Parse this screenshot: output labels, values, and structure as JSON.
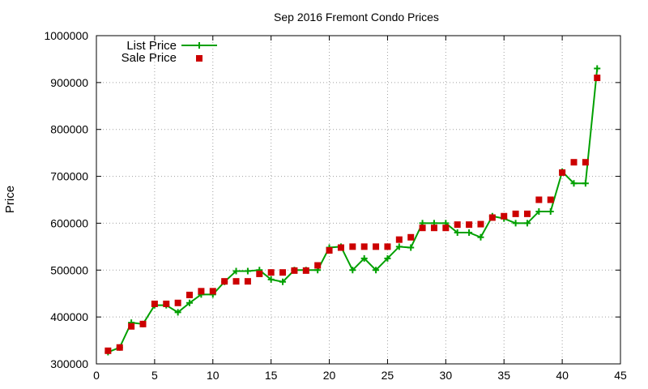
{
  "chart_data": {
    "type": "line",
    "title": "Sep 2016 Fremont Condo Prices",
    "xlabel": "",
    "ylabel": "Price",
    "xlim": [
      0,
      45
    ],
    "ylim": [
      300000,
      1000000
    ],
    "xticks": [
      0,
      5,
      10,
      15,
      20,
      25,
      30,
      35,
      40,
      45
    ],
    "yticks": [
      300000,
      400000,
      500000,
      600000,
      700000,
      800000,
      900000,
      1000000
    ],
    "x_tick_labels": [
      "0",
      "5",
      "10",
      "15",
      "20",
      "25",
      "30",
      "35",
      "40",
      "45"
    ],
    "y_tick_labels": [
      "300000",
      "400000",
      "500000",
      "600000",
      "700000",
      "800000",
      "900000",
      "1000000"
    ],
    "grid": true,
    "legend_position": "top-left",
    "series": [
      {
        "name": "List Price",
        "style": "line+plus-marker",
        "color": "#00a000",
        "points": [
          [
            1,
            325000
          ],
          [
            2,
            335000
          ],
          [
            3,
            388000
          ],
          [
            4,
            385000
          ],
          [
            5,
            425000
          ],
          [
            6,
            425000
          ],
          [
            7,
            410000
          ],
          [
            8,
            430000
          ],
          [
            9,
            448000
          ],
          [
            10,
            448000
          ],
          [
            11,
            475000
          ],
          [
            12,
            498000
          ],
          [
            13,
            498000
          ],
          [
            14,
            500000
          ],
          [
            15,
            480000
          ],
          [
            16,
            475000
          ],
          [
            17,
            500000
          ],
          [
            18,
            500000
          ],
          [
            19,
            500000
          ],
          [
            20,
            548000
          ],
          [
            21,
            550000
          ],
          [
            22,
            500000
          ],
          [
            23,
            525000
          ],
          [
            24,
            500000
          ],
          [
            25,
            525000
          ],
          [
            26,
            550000
          ],
          [
            27,
            548000
          ],
          [
            28,
            600000
          ],
          [
            29,
            600000
          ],
          [
            30,
            600000
          ],
          [
            31,
            580000
          ],
          [
            32,
            580000
          ],
          [
            33,
            570000
          ],
          [
            34,
            615000
          ],
          [
            35,
            610000
          ],
          [
            36,
            600000
          ],
          [
            37,
            600000
          ],
          [
            38,
            625000
          ],
          [
            39,
            625000
          ],
          [
            40,
            710000
          ],
          [
            41,
            685000
          ],
          [
            42,
            685000
          ],
          [
            43,
            930000
          ]
        ]
      },
      {
        "name": "Sale Price",
        "style": "square-marker",
        "color": "#cc0000",
        "points": [
          [
            1,
            328000
          ],
          [
            2,
            335000
          ],
          [
            3,
            380000
          ],
          [
            4,
            385000
          ],
          [
            5,
            428000
          ],
          [
            6,
            428000
          ],
          [
            7,
            430000
          ],
          [
            8,
            447000
          ],
          [
            9,
            455000
          ],
          [
            10,
            455000
          ],
          [
            11,
            476000
          ],
          [
            12,
            476000
          ],
          [
            13,
            476000
          ],
          [
            14,
            492000
          ],
          [
            15,
            495000
          ],
          [
            16,
            495000
          ],
          [
            17,
            499000
          ],
          [
            18,
            499000
          ],
          [
            19,
            510000
          ],
          [
            20,
            542000
          ],
          [
            21,
            548000
          ],
          [
            22,
            550000
          ],
          [
            23,
            550000
          ],
          [
            24,
            550000
          ],
          [
            25,
            550000
          ],
          [
            26,
            565000
          ],
          [
            27,
            570000
          ],
          [
            28,
            590000
          ],
          [
            29,
            590000
          ],
          [
            30,
            590000
          ],
          [
            31,
            597000
          ],
          [
            32,
            597000
          ],
          [
            33,
            598000
          ],
          [
            34,
            612000
          ],
          [
            35,
            615000
          ],
          [
            36,
            620000
          ],
          [
            37,
            620000
          ],
          [
            38,
            650000
          ],
          [
            39,
            650000
          ],
          [
            40,
            708000
          ],
          [
            41,
            730000
          ],
          [
            42,
            730000
          ],
          [
            43,
            910000
          ]
        ]
      }
    ]
  }
}
